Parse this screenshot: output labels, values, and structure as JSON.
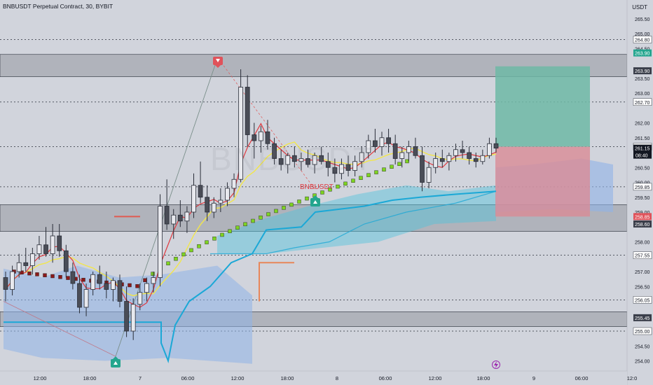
{
  "header": {
    "title": "BNBUSDT Perpetual Contract, 30, BYBIT",
    "currency": "USDT",
    "watermark": "BNBUSDT"
  },
  "colors": {
    "background": "#d1d4dc",
    "candle_body": "#4a4d57",
    "candle_wick": "#2a2e39",
    "zone_fill": "#9598a1",
    "hline": "#2a2e39",
    "take_profit": "#6fb9a6",
    "stop_loss": "#d98b96",
    "cloud_blue": "#8fb3e8",
    "cloud_cyan": "#4fc3dc",
    "line_cyan": "#1ba8d6",
    "ma_red": "#e0383e",
    "ma_yellow": "#f2e64b",
    "step_green": "#7ed321",
    "step_dark": "#8b1a1a",
    "badge_red": "#e0525a",
    "badge_teal": "#23a58e",
    "badge_dark": "#131722",
    "trend_line": "#7a8f8a",
    "symbol_label": "#e0383e"
  },
  "annotations": {
    "symbol_label": "BNBUSDT",
    "lightning_icon": "lightning-icon"
  },
  "chart_data": {
    "type": "candlestick",
    "symbol": "BNBUSDT Perpetual Contract",
    "interval": "30",
    "exchange": "BYBIT",
    "ylim": [
      253.8,
      265.8
    ],
    "y_ticks": [
      "265.50",
      "265.00",
      "264.50",
      "263.50",
      "263.00",
      "262.00",
      "261.50",
      "260.50",
      "260.00",
      "259.50",
      "259.00",
      "258.00",
      "257.00",
      "256.50",
      "256.00",
      "255.50",
      "254.50",
      "254.00"
    ],
    "x_ticks": [
      "12:00",
      "18:00",
      "7",
      "06:00",
      "12:00",
      "18:00",
      "8",
      "06:00",
      "12:00",
      "18:00",
      "9",
      "06:00",
      "12:0"
    ],
    "x_tick_positions": [
      57,
      128,
      200,
      268,
      339,
      410,
      481,
      550,
      621,
      690,
      762,
      830,
      902
    ],
    "horizontal_levels": [
      264.8,
      262.7,
      261.2,
      259.85,
      257.55,
      256.05,
      255.0
    ],
    "zones": [
      [
        263.55,
        264.3
      ],
      [
        258.35,
        259.25
      ],
      [
        255.15,
        255.65
      ]
    ],
    "price_labels": [
      {
        "value": "264.80",
        "kind": "plain"
      },
      {
        "value": "263.90",
        "kind": "green"
      },
      {
        "value": "263.90",
        "kind": "dark"
      },
      {
        "value": "262.70",
        "kind": "plain"
      },
      {
        "value": "261.20",
        "kind": "plain"
      },
      {
        "value": "261.15",
        "kind": "current",
        "sub": "08:40"
      },
      {
        "value": "259.85",
        "kind": "plain"
      },
      {
        "value": "258.85",
        "kind": "red"
      },
      {
        "value": "258.60",
        "kind": "dark"
      },
      {
        "value": "257.55",
        "kind": "plain"
      },
      {
        "value": "256.05",
        "kind": "plain"
      },
      {
        "value": "255.45",
        "kind": "dark"
      },
      {
        "value": "255.00",
        "kind": "plain"
      }
    ],
    "position": {
      "entry": 261.2,
      "take_profit": 263.9,
      "stop_loss": 258.85,
      "x_start": 707,
      "x_end": 842
    },
    "candles": [
      {
        "o": 256.8,
        "h": 257.0,
        "l": 256.0,
        "c": 256.4
      },
      {
        "o": 256.4,
        "h": 257.2,
        "l": 256.2,
        "c": 257.0
      },
      {
        "o": 257.0,
        "h": 257.6,
        "l": 256.8,
        "c": 257.3
      },
      {
        "o": 257.3,
        "h": 257.8,
        "l": 257.0,
        "c": 257.2
      },
      {
        "o": 257.2,
        "h": 257.8,
        "l": 256.9,
        "c": 257.6
      },
      {
        "o": 257.6,
        "h": 258.2,
        "l": 257.4,
        "c": 257.9
      },
      {
        "o": 257.9,
        "h": 258.5,
        "l": 257.5,
        "c": 257.6
      },
      {
        "o": 257.6,
        "h": 258.6,
        "l": 257.3,
        "c": 258.2
      },
      {
        "o": 258.2,
        "h": 258.6,
        "l": 257.5,
        "c": 257.7
      },
      {
        "o": 257.7,
        "h": 257.9,
        "l": 256.8,
        "c": 257.0
      },
      {
        "o": 257.0,
        "h": 257.3,
        "l": 256.4,
        "c": 256.6
      },
      {
        "o": 256.6,
        "h": 256.9,
        "l": 255.6,
        "c": 255.8
      },
      {
        "o": 255.8,
        "h": 256.6,
        "l": 255.5,
        "c": 256.4
      },
      {
        "o": 256.4,
        "h": 257.0,
        "l": 256.2,
        "c": 256.9
      },
      {
        "o": 256.9,
        "h": 257.2,
        "l": 256.4,
        "c": 256.6
      },
      {
        "o": 256.6,
        "h": 257.0,
        "l": 256.1,
        "c": 256.4
      },
      {
        "o": 256.4,
        "h": 256.8,
        "l": 256.0,
        "c": 256.7
      },
      {
        "o": 256.7,
        "h": 256.9,
        "l": 255.8,
        "c": 256.0
      },
      {
        "o": 256.0,
        "h": 256.5,
        "l": 254.8,
        "c": 255.0
      },
      {
        "o": 255.0,
        "h": 256.1,
        "l": 254.7,
        "c": 255.9
      },
      {
        "o": 255.9,
        "h": 256.6,
        "l": 255.7,
        "c": 256.3
      },
      {
        "o": 256.3,
        "h": 256.8,
        "l": 256.0,
        "c": 256.6
      },
      {
        "o": 256.6,
        "h": 257.0,
        "l": 256.3,
        "c": 256.8
      },
      {
        "o": 256.8,
        "h": 259.6,
        "l": 256.5,
        "c": 259.2
      },
      {
        "o": 259.2,
        "h": 260.1,
        "l": 258.4,
        "c": 258.6
      },
      {
        "o": 258.6,
        "h": 259.1,
        "l": 258.1,
        "c": 258.9
      },
      {
        "o": 258.9,
        "h": 259.4,
        "l": 258.5,
        "c": 258.7
      },
      {
        "o": 258.7,
        "h": 259.2,
        "l": 258.3,
        "c": 259.0
      },
      {
        "o": 259.0,
        "h": 260.3,
        "l": 258.8,
        "c": 259.9
      },
      {
        "o": 259.9,
        "h": 260.7,
        "l": 259.3,
        "c": 259.5
      },
      {
        "o": 259.5,
        "h": 259.9,
        "l": 258.7,
        "c": 259.0
      },
      {
        "o": 259.0,
        "h": 259.5,
        "l": 258.8,
        "c": 259.3
      },
      {
        "o": 259.3,
        "h": 259.8,
        "l": 259.0,
        "c": 259.4
      },
      {
        "o": 259.4,
        "h": 260.0,
        "l": 259.2,
        "c": 259.8
      },
      {
        "o": 259.8,
        "h": 260.3,
        "l": 259.5,
        "c": 260.1
      },
      {
        "o": 260.1,
        "h": 263.8,
        "l": 260.0,
        "c": 263.2
      },
      {
        "o": 263.2,
        "h": 263.6,
        "l": 261.2,
        "c": 261.6
      },
      {
        "o": 261.6,
        "h": 262.0,
        "l": 260.8,
        "c": 261.4
      },
      {
        "o": 261.4,
        "h": 261.9,
        "l": 261.0,
        "c": 261.7
      },
      {
        "o": 261.7,
        "h": 262.1,
        "l": 261.1,
        "c": 261.3
      },
      {
        "o": 261.3,
        "h": 261.5,
        "l": 260.6,
        "c": 260.8
      },
      {
        "o": 260.8,
        "h": 261.1,
        "l": 260.4,
        "c": 260.6
      },
      {
        "o": 260.6,
        "h": 261.0,
        "l": 260.3,
        "c": 260.9
      },
      {
        "o": 260.9,
        "h": 261.2,
        "l": 260.5,
        "c": 260.7
      },
      {
        "o": 260.7,
        "h": 261.0,
        "l": 260.4,
        "c": 260.8
      },
      {
        "o": 260.8,
        "h": 261.1,
        "l": 260.5,
        "c": 260.6
      },
      {
        "o": 260.6,
        "h": 261.0,
        "l": 260.3,
        "c": 260.9
      },
      {
        "o": 260.9,
        "h": 261.2,
        "l": 260.6,
        "c": 260.7
      },
      {
        "o": 260.7,
        "h": 261.0,
        "l": 260.2,
        "c": 260.5
      },
      {
        "o": 260.5,
        "h": 260.8,
        "l": 260.0,
        "c": 260.3
      },
      {
        "o": 260.3,
        "h": 260.8,
        "l": 260.1,
        "c": 260.6
      },
      {
        "o": 260.6,
        "h": 260.9,
        "l": 260.2,
        "c": 260.4
      },
      {
        "o": 260.4,
        "h": 260.9,
        "l": 260.2,
        "c": 260.7
      },
      {
        "o": 260.7,
        "h": 261.2,
        "l": 260.5,
        "c": 261.0
      },
      {
        "o": 261.0,
        "h": 261.6,
        "l": 260.8,
        "c": 261.4
      },
      {
        "o": 261.4,
        "h": 261.8,
        "l": 261.0,
        "c": 261.2
      },
      {
        "o": 261.2,
        "h": 261.7,
        "l": 260.9,
        "c": 261.5
      },
      {
        "o": 261.5,
        "h": 261.8,
        "l": 261.0,
        "c": 261.3
      },
      {
        "o": 261.3,
        "h": 261.6,
        "l": 260.6,
        "c": 260.8
      },
      {
        "o": 260.8,
        "h": 261.2,
        "l": 260.5,
        "c": 261.0
      },
      {
        "o": 261.0,
        "h": 261.4,
        "l": 260.7,
        "c": 261.2
      },
      {
        "o": 261.2,
        "h": 261.5,
        "l": 260.8,
        "c": 260.9
      },
      {
        "o": 260.9,
        "h": 261.2,
        "l": 259.7,
        "c": 260.0
      },
      {
        "o": 260.0,
        "h": 260.7,
        "l": 259.8,
        "c": 260.5
      },
      {
        "o": 260.5,
        "h": 261.0,
        "l": 260.3,
        "c": 260.8
      },
      {
        "o": 260.8,
        "h": 261.1,
        "l": 260.5,
        "c": 260.7
      },
      {
        "o": 260.7,
        "h": 261.0,
        "l": 260.4,
        "c": 260.9
      },
      {
        "o": 260.9,
        "h": 261.3,
        "l": 260.7,
        "c": 261.1
      },
      {
        "o": 261.1,
        "h": 261.4,
        "l": 260.8,
        "c": 261.0
      },
      {
        "o": 261.0,
        "h": 261.2,
        "l": 260.6,
        "c": 260.8
      },
      {
        "o": 260.8,
        "h": 261.0,
        "l": 260.5,
        "c": 260.7
      },
      {
        "o": 260.7,
        "h": 261.1,
        "l": 260.6,
        "c": 260.9
      },
      {
        "o": 260.9,
        "h": 261.5,
        "l": 260.8,
        "c": 261.3
      },
      {
        "o": 261.3,
        "h": 261.5,
        "l": 261.0,
        "c": 261.15
      }
    ]
  }
}
